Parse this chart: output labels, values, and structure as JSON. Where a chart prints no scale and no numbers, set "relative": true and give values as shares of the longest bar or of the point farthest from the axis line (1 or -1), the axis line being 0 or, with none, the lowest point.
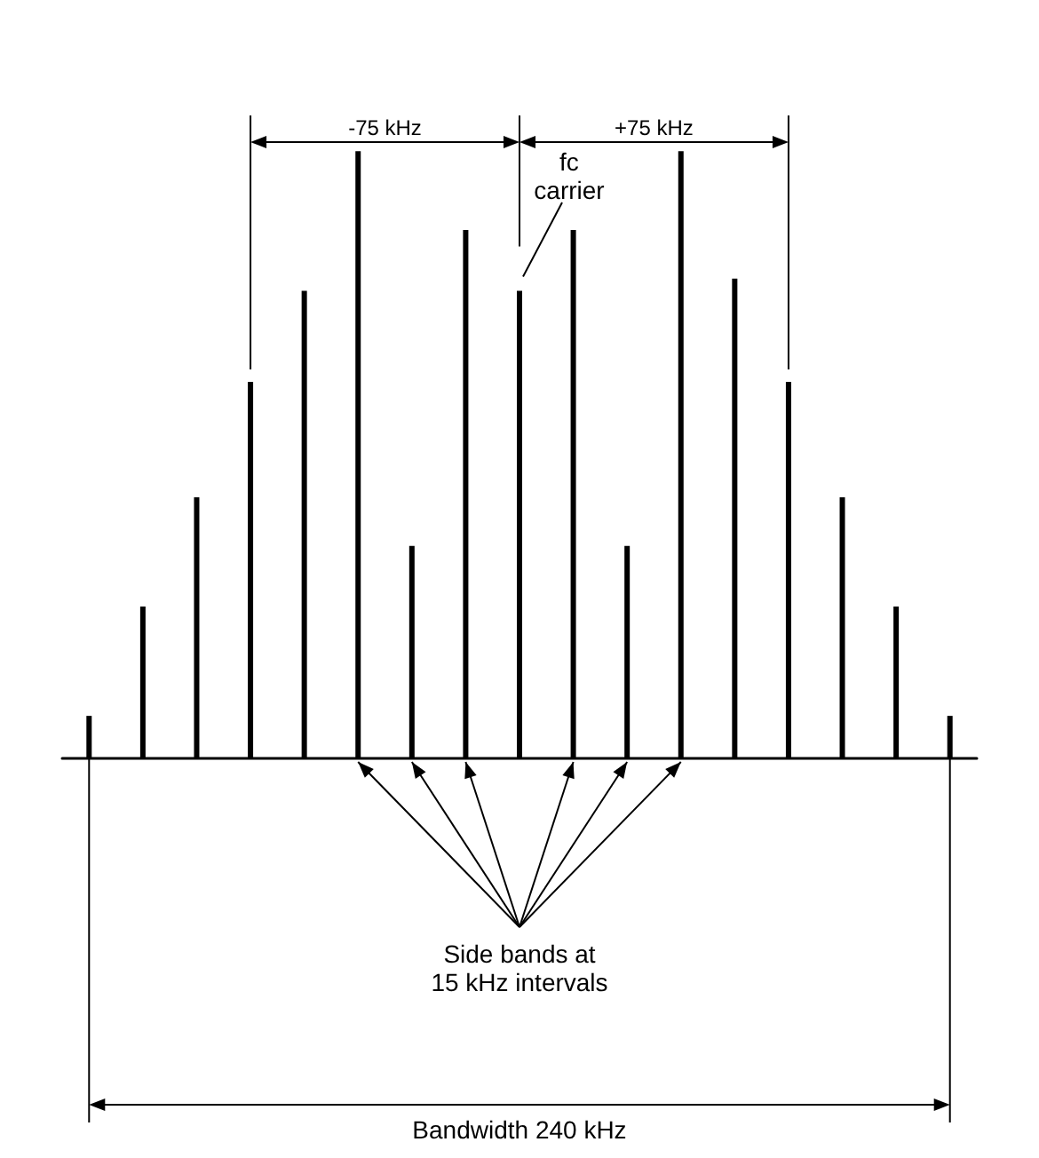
{
  "chart_data": {
    "type": "bar",
    "relative": true,
    "color": "#000000",
    "categories": [
      null,
      null,
      null,
      null,
      null,
      null,
      null,
      null,
      null,
      null,
      null,
      null,
      null,
      null,
      null,
      null,
      null
    ],
    "values": [
      0.07,
      0.25,
      0.43,
      0.62,
      0.77,
      1,
      0.35,
      0.87,
      0.77,
      0.87,
      0.35,
      1,
      0.79,
      0.62,
      0.43,
      0.25,
      0.07
    ],
    "annotations": [
      "-75 kHz",
      "+75 kHz",
      "fc\ncarrier",
      "Side bands at\n15 kHz intervals",
      "Bandwidth 240 kHz"
    ]
  }
}
